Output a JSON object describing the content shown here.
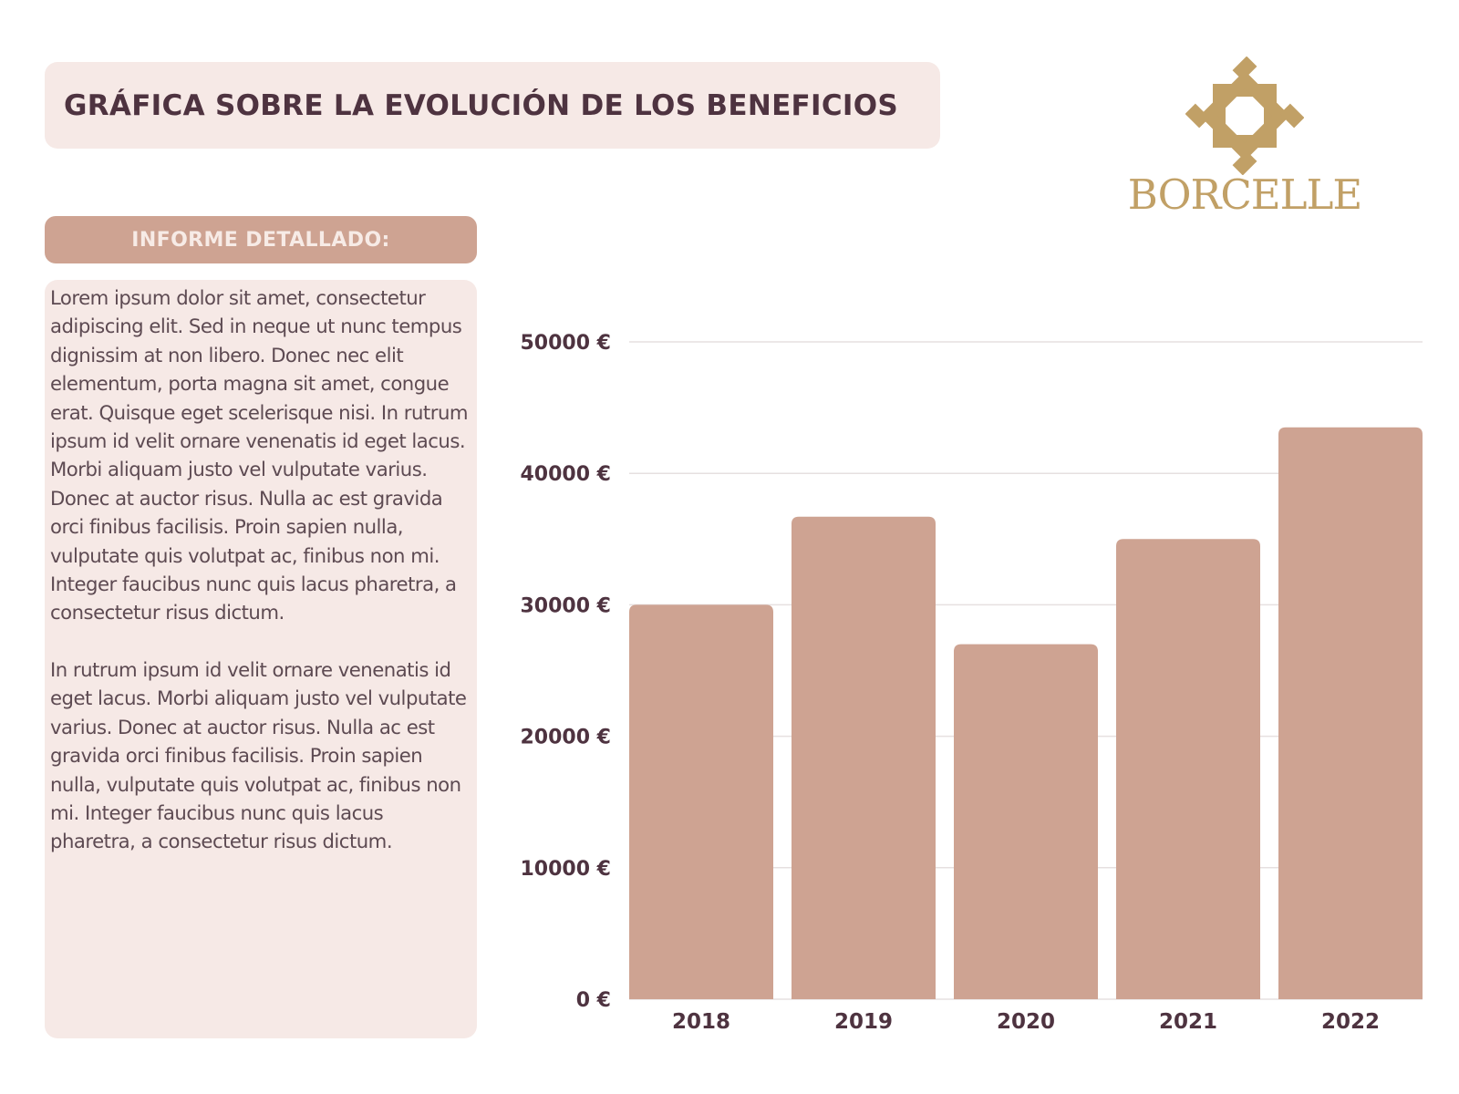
{
  "header": {
    "title": "GRÁFICA SOBRE LA EVOLUCIÓN DE LOS BENEFICIOS"
  },
  "brand": {
    "name": "BORCELLE",
    "color": "#c1a066"
  },
  "report": {
    "heading": "INFORME DETALLADO:",
    "paragraphs": [
      "Lorem ipsum dolor sit amet, consectetur adipiscing elit. Sed in neque ut nunc tempus dignissim at non libero. Donec nec elit elementum, porta magna sit amet, congue erat. Quisque eget scelerisque nisi. In rutrum ipsum id velit ornare venenatis id eget lacus. Morbi aliquam justo vel vulputate varius. Donec at auctor risus. Nulla ac est gravida orci finibus facilisis. Proin sapien nulla, vulputate quis volutpat ac, finibus non mi. Integer faucibus nunc quis lacus pharetra, a consectetur risus dictum.",
      "In rutrum ipsum id velit ornare venenatis id eget lacus. Morbi aliquam justo vel vulputate varius. Donec at auctor risus. Nulla ac est gravida orci finibus facilisis. Proin sapien nulla, vulputate quis volutpat ac, finibus non mi. Integer faucibus nunc quis lacus pharetra, a consectetur risus dictum."
    ]
  },
  "colors": {
    "bar": "#cea392",
    "title_text": "#4e3340",
    "panel_bg": "#f6e9e6",
    "axis_text": "#4e3340",
    "gridline": "#e6e0e0"
  },
  "chart_data": {
    "type": "bar",
    "title": "",
    "xlabel": "",
    "ylabel": "",
    "categories": [
      "2018",
      "2019",
      "2020",
      "2021",
      "2022"
    ],
    "values": [
      30000,
      36700,
      27000,
      35000,
      43500
    ],
    "ylim": [
      0,
      50000
    ],
    "yticks": [
      0,
      10000,
      20000,
      30000,
      40000,
      50000
    ],
    "ytick_labels": [
      "0 €",
      "10000 €",
      "20000 €",
      "30000 €",
      "40000 €",
      "50000 €"
    ],
    "grid": true,
    "legend": "none"
  }
}
